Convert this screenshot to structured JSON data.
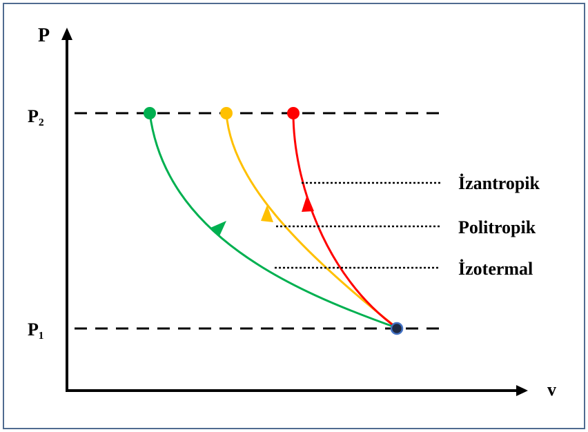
{
  "axes": {
    "y_label": "P",
    "x_label": "v",
    "p2_label": "P₂",
    "p1_label": "P₁"
  },
  "legend": [
    {
      "key": "izantropik",
      "label": "İzantropik",
      "color": "#ff0000"
    },
    {
      "key": "politropik",
      "label": "Politropik",
      "color": "#ffc000"
    },
    {
      "key": "izotermal",
      "label": "İzotermal",
      "color": "#00b050"
    }
  ],
  "colors": {
    "frame": "#4f6b8f",
    "axis": "#000000",
    "start_point": "#1f2a44",
    "start_point_ring": "#4472c4"
  }
}
